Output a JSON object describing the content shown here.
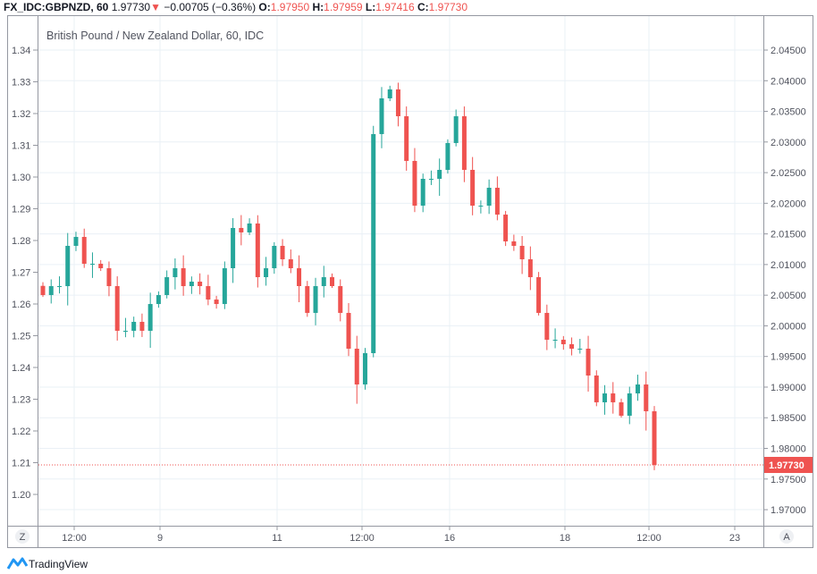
{
  "header": {
    "symbol": "FX_IDC:GBPNZD, 60",
    "last": "1.97730",
    "change": "−0.00705 (−0.36%)",
    "o_label": "O:",
    "o": "1.97950",
    "h_label": "H:",
    "h": "1.97959",
    "l_label": "L:",
    "l": "1.97416",
    "c_label": "C:",
    "c": "1.97730"
  },
  "legend_title": "British Pound / New Zealand Dollar, 60, IDC",
  "buttons": {
    "left": "Z",
    "right": "A"
  },
  "branding": "TradingView",
  "colors": {
    "up": "#26a69a",
    "down": "#ef5350",
    "grid": "#eaf0f6",
    "last_price": "#ef5350"
  },
  "chart_data": {
    "type": "candlestick",
    "title": "British Pound / New Zealand Dollar, 60, IDC",
    "right_axis": {
      "range": [
        1.9675,
        2.048
      ],
      "ticks": [
        "2.04500",
        "2.04000",
        "2.03500",
        "2.03000",
        "2.02500",
        "2.02000",
        "2.01500",
        "2.01000",
        "2.00500",
        "2.00000",
        "1.99500",
        "1.99000",
        "1.98500",
        "1.98000",
        "1.97500",
        "1.97000"
      ]
    },
    "left_axis": {
      "range": [
        1.195,
        1.348
      ],
      "ticks": [
        "1.34",
        "1.33",
        "1.32",
        "1.31",
        "1.30",
        "1.29",
        "1.28",
        "1.27",
        "1.26",
        "1.25",
        "1.24",
        "1.23",
        "1.22",
        "1.21",
        "1.20"
      ]
    },
    "x_ticks": [
      "12:00",
      "9",
      "11",
      "12:00",
      "16",
      "18",
      "12:00",
      "23"
    ],
    "last_price": 1.9773,
    "last_price_label": "1.97730",
    "grid": true,
    "closes": [
      2.00502,
      2.00648,
      2.00648,
      2.01305,
      2.01451,
      2.01013,
      2.01013,
      2.0094,
      2.00648,
      1.99919,
      1.99919,
      2.00065,
      1.99919,
      2.00356,
      2.00502,
      2.00794,
      2.0094,
      2.00648,
      2.00721,
      2.00648,
      2.00429,
      2.00356,
      2.0094,
      2.01597,
      2.01524,
      2.0167,
      2.00794,
      2.0094,
      2.01305,
      2.01086,
      2.0094,
      2.00648,
      2.00211,
      2.00648,
      2.00794,
      2.00648,
      2.00211,
      1.99627,
      1.99043,
      1.99554,
      2.03129,
      2.03712,
      2.03858,
      2.0342,
      2.02691,
      2.01961,
      2.02399,
      2.02399,
      2.02545,
      2.02983,
      2.0342,
      2.02545,
      2.01961,
      2.01961,
      2.02253,
      2.01815,
      2.01378,
      2.01305,
      2.01086,
      2.00794,
      2.00211,
      1.99773,
      1.99773,
      1.997,
      1.99627,
      1.99627,
      1.99189,
      1.98752,
      1.98897,
      1.98752,
      1.98533,
      1.98897,
      1.99043,
      1.98606,
      1.9773
    ]
  }
}
